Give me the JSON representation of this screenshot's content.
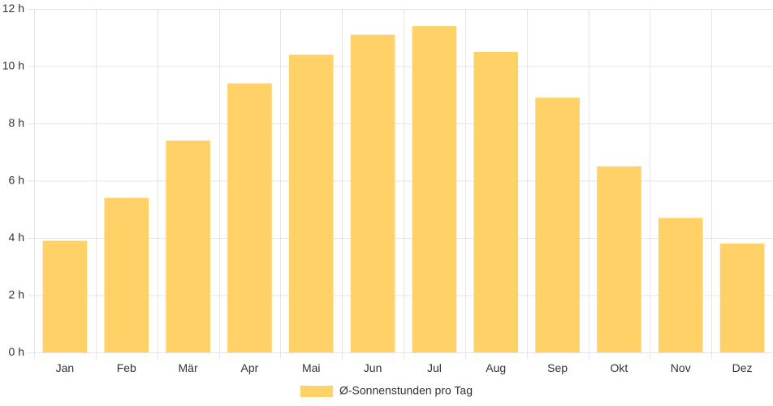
{
  "chart_data": {
    "type": "bar",
    "categories": [
      "Jan",
      "Feb",
      "Mär",
      "Apr",
      "Mai",
      "Jun",
      "Jul",
      "Aug",
      "Sep",
      "Okt",
      "Nov",
      "Dez"
    ],
    "series": [
      {
        "name": "Ø-Sonnenstunden pro Tag",
        "values": [
          3.9,
          5.4,
          7.4,
          9.4,
          10.4,
          11.1,
          11.4,
          10.5,
          8.9,
          6.5,
          4.7,
          3.8
        ]
      }
    ],
    "y_ticks": [
      "0 h",
      "2 h",
      "4 h",
      "6 h",
      "8 h",
      "10 h",
      "12 h"
    ],
    "ylim": [
      0,
      12
    ],
    "grid": true,
    "legend_position": "bottom",
    "bar_color": "#ffd166",
    "grid_color": "#e5e5e5"
  }
}
